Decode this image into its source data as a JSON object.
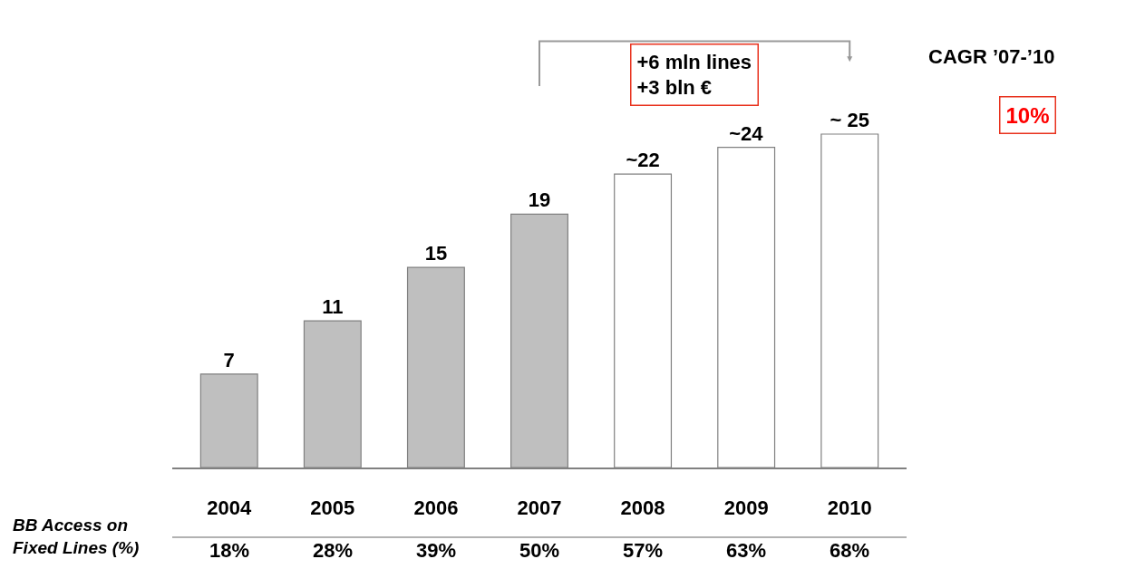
{
  "chart_data": {
    "type": "bar",
    "categories": [
      "2004",
      "2005",
      "2006",
      "2007",
      "2008",
      "2009",
      "2010"
    ],
    "values": [
      7,
      11,
      15,
      19,
      22,
      24,
      25
    ],
    "value_labels": [
      "7",
      "11",
      "15",
      "19",
      "~22",
      "~24",
      "~ 25"
    ],
    "colors": [
      "#bfbfbf",
      "#bfbfbf",
      "#bfbfbf",
      "#bfbfbf",
      "#ffffff",
      "#ffffff",
      "#ffffff"
    ],
    "legend": false,
    "annotations": [
      "+6 mln lines\n+3 bln €",
      "CAGR ’07-’10",
      "10%",
      "BB Access on\nFixed Lines (%)",
      "18%",
      "28%",
      "39%",
      "50%",
      "57%",
      "63%",
      "68%"
    ]
  }
}
